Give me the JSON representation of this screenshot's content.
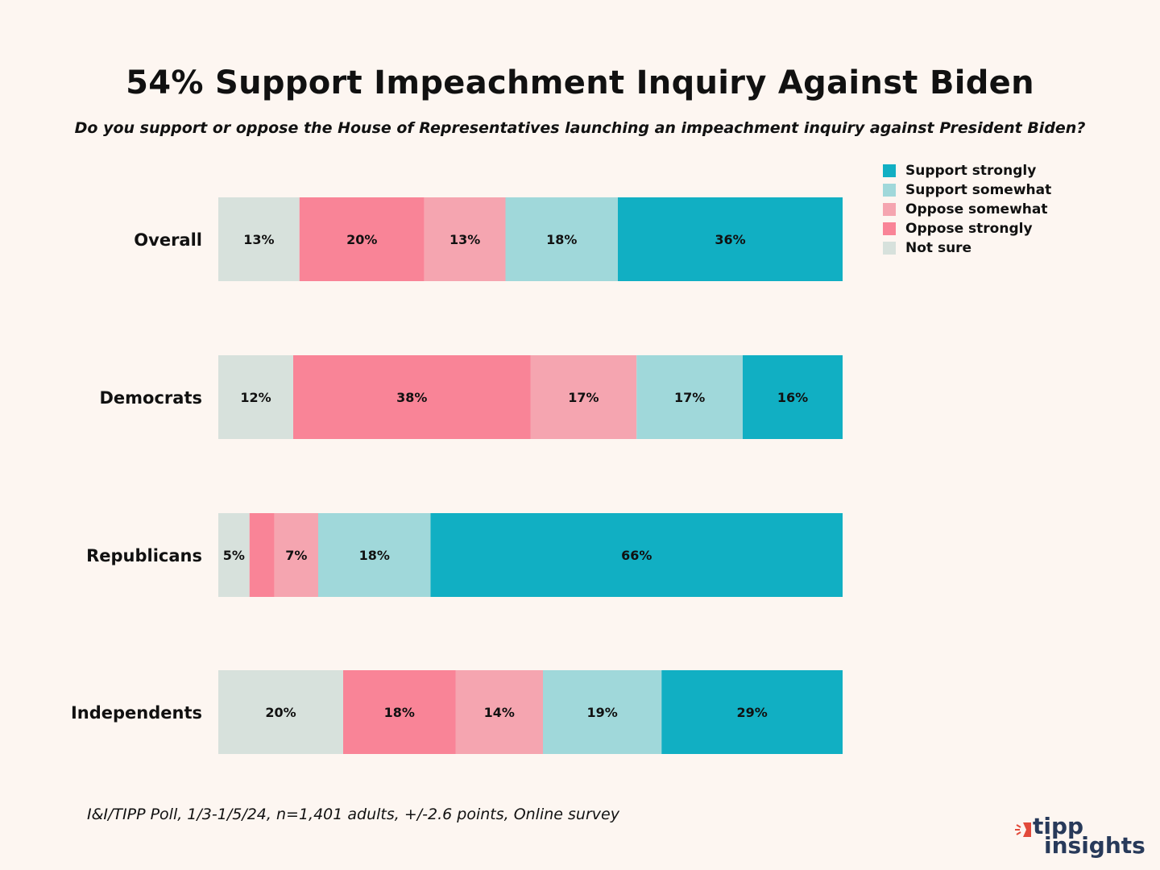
{
  "colors": {
    "support_strongly": "#11afc3",
    "support_somewhat": "#a0d8da",
    "oppose_somewhat": "#f5a5b0",
    "oppose_strongly": "#f98497",
    "not_sure": "#d7e1dc",
    "background": "#fdf6f1",
    "logo_red": "#e24a3b",
    "logo_navy": "#283a5a"
  },
  "chart_data": {
    "type": "bar",
    "orientation": "horizontal",
    "stacked": true,
    "title": "54% Support Impeachment Inquiry Against Biden",
    "subtitle": "Do you support or oppose the House of Representatives launching an impeachment inquiry against President Biden?",
    "categories": [
      "Overall",
      "Democrats",
      "Republicans",
      "Independents"
    ],
    "series": [
      {
        "name": "Not sure",
        "key": "not_sure",
        "values": [
          13,
          12,
          5,
          20
        ],
        "labels": [
          "13%",
          "12%",
          "5%",
          "20%"
        ]
      },
      {
        "name": "Oppose strongly",
        "key": "oppose_strongly",
        "values": [
          20,
          38,
          4,
          18
        ],
        "labels": [
          "20%",
          "38%",
          "",
          "18%"
        ]
      },
      {
        "name": "Oppose somewhat",
        "key": "oppose_somewhat",
        "values": [
          13,
          17,
          7,
          14
        ],
        "labels": [
          "13%",
          "17%",
          "7%",
          "14%"
        ]
      },
      {
        "name": "Support somewhat",
        "key": "support_somewhat",
        "values": [
          18,
          17,
          18,
          19
        ],
        "labels": [
          "18%",
          "17%",
          "18%",
          "19%"
        ]
      },
      {
        "name": "Support strongly",
        "key": "support_strongly",
        "values": [
          36,
          16,
          66,
          29
        ],
        "labels": [
          "36%",
          "16%",
          "66%",
          "29%"
        ]
      }
    ],
    "legend": {
      "position": "top-right",
      "items": [
        {
          "label": "Support strongly",
          "key": "support_strongly"
        },
        {
          "label": "Support somewhat",
          "key": "support_somewhat"
        },
        {
          "label": "Oppose somewhat",
          "key": "oppose_somewhat"
        },
        {
          "label": "Oppose strongly",
          "key": "oppose_strongly"
        },
        {
          "label": "Not sure",
          "key": "not_sure"
        }
      ]
    },
    "grid": false
  },
  "footnote": "I&I/TIPP Poll, 1/3-1/5/24, n=1,401 adults, +/-2.6 points, Online survey",
  "logo": {
    "line1": "tipp",
    "line2": "insights"
  }
}
